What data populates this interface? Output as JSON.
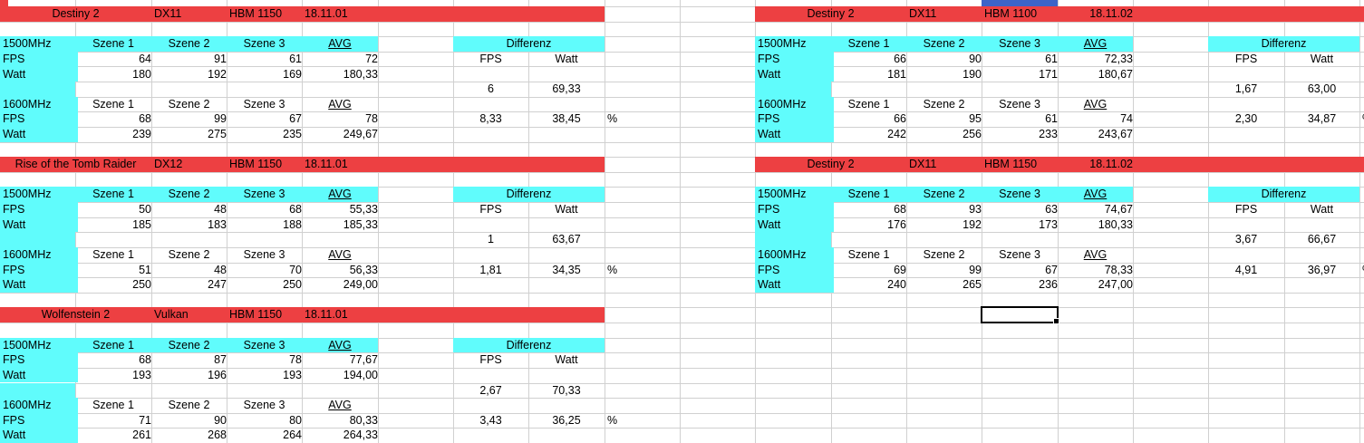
{
  "app": {
    "type": "spreadsheet",
    "decimal_separator": ","
  },
  "colors": {
    "red": "#ed4042",
    "cyan": "#60fcfc",
    "blue": "#3d64c8",
    "gridline": "#d0d0d0",
    "text": "#000000",
    "cell_bg": "#ffffff",
    "selection_border": "#000000"
  },
  "labels": {
    "mhz1500": "1500MHz",
    "mhz1600": "1600MHz",
    "fps": "FPS",
    "watt": "Watt",
    "szene1": "Szene 1",
    "szene2": "Szene 2",
    "szene3": "Szene 3",
    "avg": "AVG",
    "differenz": "Differenz",
    "percent": "%"
  },
  "tables": [
    {
      "title": "Destiny 2",
      "api": "DX11",
      "hbm": "HBM 1150",
      "date": "18.11.01",
      "date_align": "left",
      "base_row": 1,
      "base_col": 0,
      "band_cols": 8,
      "s1500": {
        "fps": [
          "64",
          "91",
          "61",
          "72"
        ],
        "watt": [
          "180",
          "192",
          "169",
          "180,33"
        ]
      },
      "diff1500": {
        "fps": "6",
        "watt": "69,33"
      },
      "s1600": {
        "fps": [
          "68",
          "99",
          "67",
          "78"
        ],
        "watt": [
          "239",
          "275",
          "235",
          "249,67"
        ]
      },
      "diff1600": {
        "fps": "8,33",
        "watt": "38,45"
      }
    },
    {
      "title": "Rise of the Tomb Raider",
      "api": "DX12",
      "hbm": "HBM 1150",
      "date": "18.11.01",
      "date_align": "left",
      "base_row": 11,
      "base_col": 0,
      "band_cols": 8,
      "s1500": {
        "fps": [
          "50",
          "48",
          "68",
          "55,33"
        ],
        "watt": [
          "185",
          "183",
          "188",
          "185,33"
        ]
      },
      "diff1500": {
        "fps": "1",
        "watt": "63,67"
      },
      "s1600": {
        "fps": [
          "51",
          "48",
          "70",
          "56,33"
        ],
        "watt": [
          "250",
          "247",
          "250",
          "249,00"
        ]
      },
      "diff1600": {
        "fps": "1,81",
        "watt": "34,35"
      }
    },
    {
      "title": "Wolfenstein 2",
      "api": "Vulkan",
      "hbm": "HBM 1150",
      "date": "18.11.01",
      "date_align": "left",
      "base_row": 21,
      "base_col": 0,
      "band_cols": 8,
      "s1500": {
        "fps": [
          "68",
          "87",
          "78",
          "77,67"
        ],
        "watt": [
          "193",
          "196",
          "193",
          "194,00"
        ]
      },
      "diff1500": {
        "fps": "2,67",
        "watt": "70,33"
      },
      "s1600": {
        "fps": [
          "71",
          "90",
          "80",
          "80,33"
        ],
        "watt": [
          "261",
          "268",
          "264",
          "264,33"
        ]
      },
      "diff1600": {
        "fps": "3,43",
        "watt": "36,25"
      }
    },
    {
      "title": "Destiny 2",
      "api": "DX11",
      "hbm": "HBM 1100",
      "date": "18.11.02",
      "date_align": "right",
      "base_row": 1,
      "base_col": 10,
      "band_cols": 9,
      "s1500": {
        "fps": [
          "66",
          "90",
          "61",
          "72,33"
        ],
        "watt": [
          "181",
          "190",
          "171",
          "180,67"
        ]
      },
      "diff1500": {
        "fps": "1,67",
        "watt": "63,00"
      },
      "s1600": {
        "fps": [
          "66",
          "95",
          "61",
          "74"
        ],
        "watt": [
          "242",
          "256",
          "233",
          "243,67"
        ]
      },
      "diff1600": {
        "fps": "2,30",
        "watt": "34,87"
      }
    },
    {
      "title": "Destiny 2",
      "api": "DX11",
      "hbm": "HBM 1150",
      "date": "18.11.02",
      "date_align": "right",
      "base_row": 11,
      "base_col": 10,
      "band_cols": 9,
      "s1500": {
        "fps": [
          "68",
          "93",
          "63",
          "74,67"
        ],
        "watt": [
          "176",
          "192",
          "173",
          "180,33"
        ]
      },
      "diff1500": {
        "fps": "3,67",
        "watt": "66,67"
      },
      "s1600": {
        "fps": [
          "69",
          "99",
          "67",
          "78,33"
        ],
        "watt": [
          "240",
          "265",
          "236",
          "247,00"
        ]
      },
      "diff1600": {
        "fps": "4,91",
        "watt": "36,97"
      }
    }
  ],
  "partial_top_row": {
    "red_fragment_width": 9,
    "blue_cell_col": 13
  },
  "selection": {
    "row": 21,
    "col": 13
  }
}
